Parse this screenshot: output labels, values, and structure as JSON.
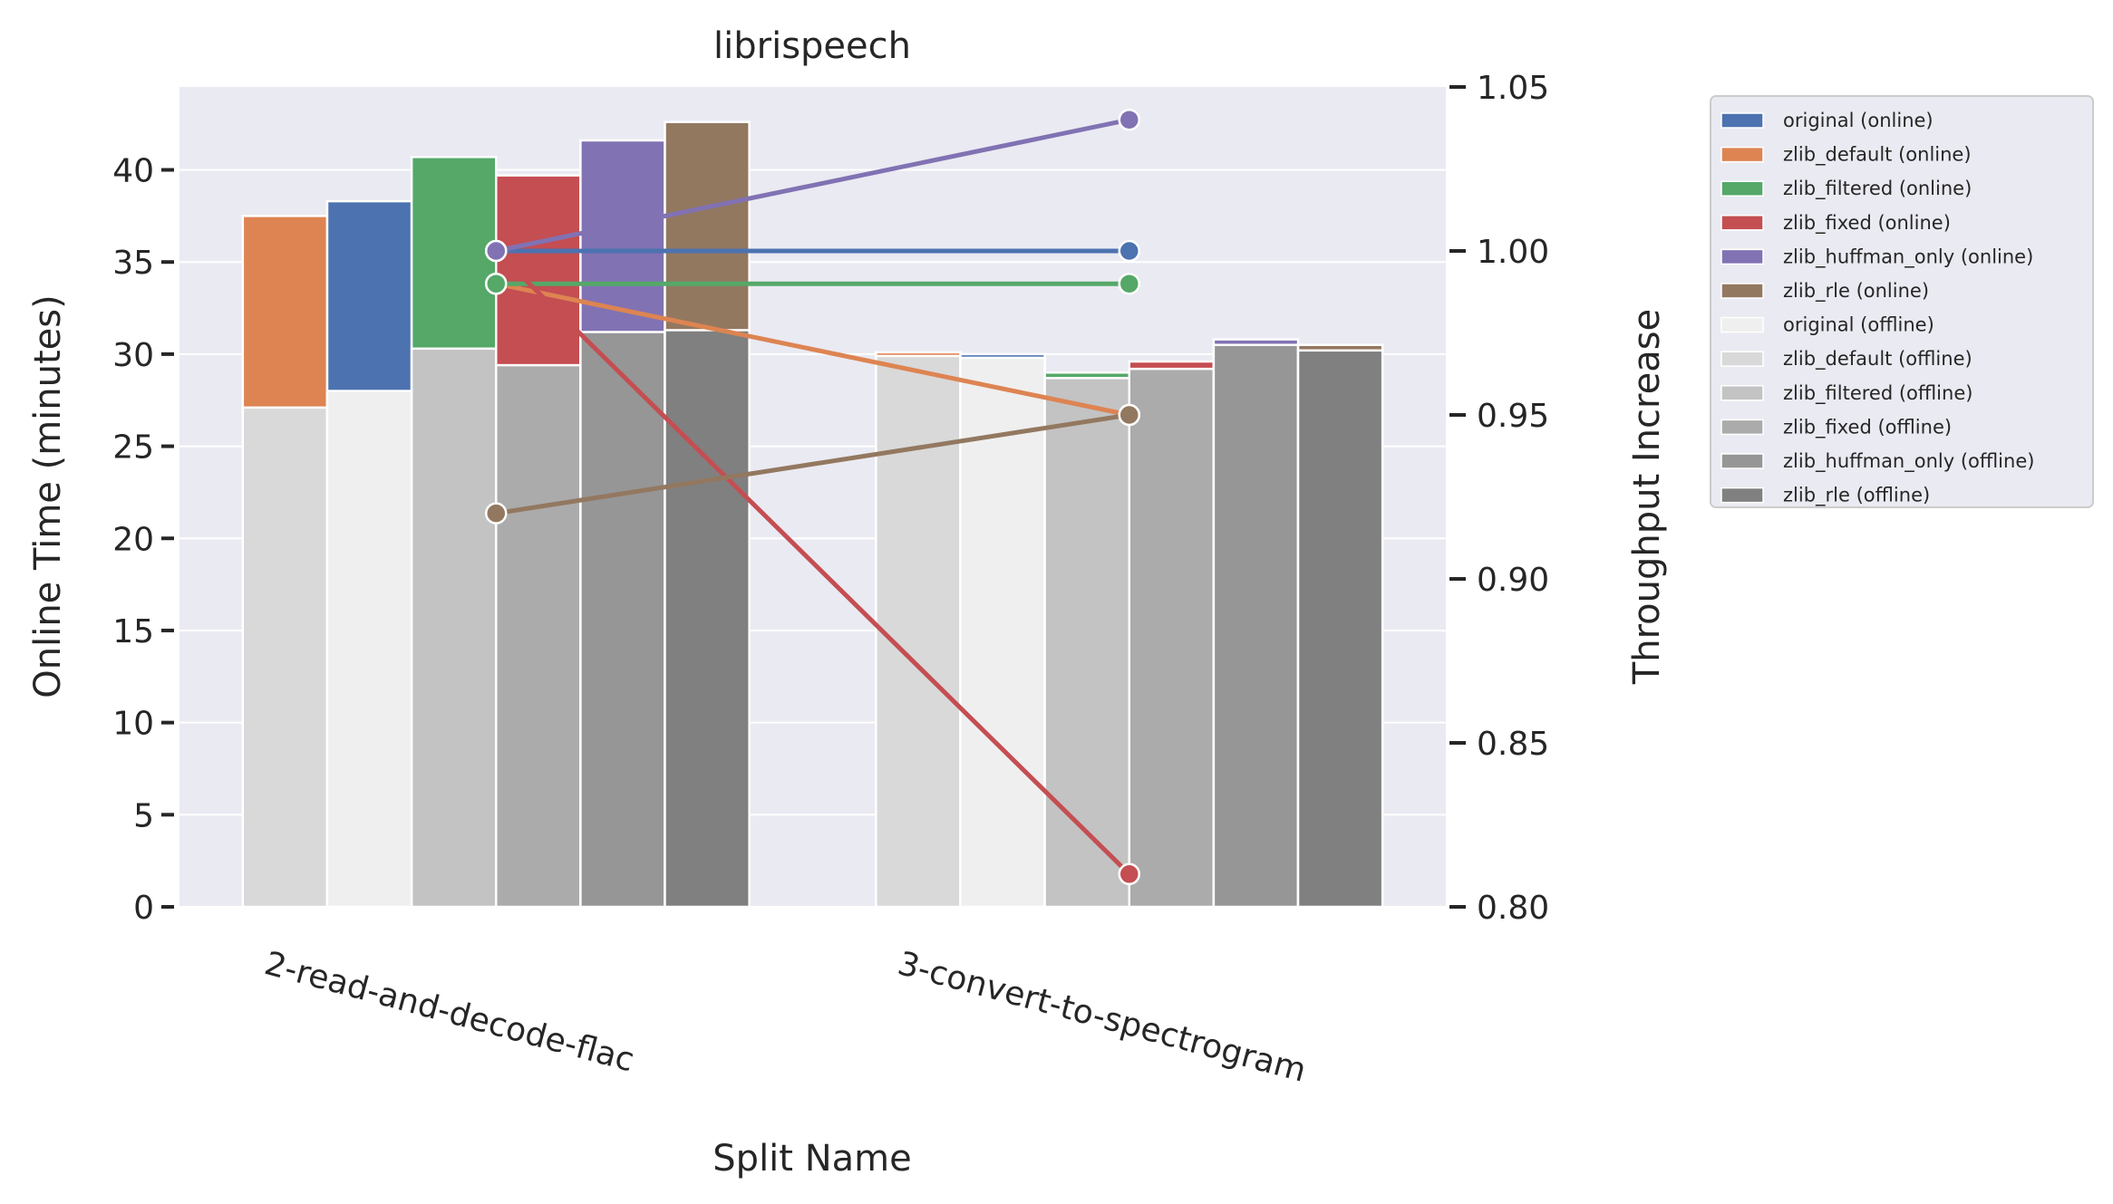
{
  "chart_data": {
    "type": "bar",
    "title": "librispeech",
    "xlabel": "Split Name",
    "ylabel": "Online Time (minutes)",
    "y2label": "Throughput Increase",
    "ylim": [
      0,
      44.5
    ],
    "y2lim": [
      0.8,
      1.05
    ],
    "yticks": [
      "0",
      "5",
      "10",
      "15",
      "20",
      "25",
      "30",
      "35",
      "40"
    ],
    "y2ticks": [
      "0.80",
      "0.85",
      "0.90",
      "0.95",
      "1.00",
      "1.05"
    ],
    "categories": [
      "2-read-and-decode-flac",
      "3-convert-to-spectrogram"
    ],
    "grid": true,
    "legend_position": "outside-right",
    "series": [
      {
        "name": "zlib_default",
        "online": [
          37.5,
          30.1
        ],
        "offline": [
          27.1,
          29.9
        ],
        "online_color": "#dd8452",
        "offline_color": "#d9d9d9"
      },
      {
        "name": "original",
        "online": [
          38.3,
          30.0
        ],
        "offline": [
          28.0,
          29.8
        ],
        "online_color": "#4c72b0",
        "offline_color": "#efefef"
      },
      {
        "name": "zlib_filtered",
        "online": [
          40.7,
          29.0
        ],
        "offline": [
          30.3,
          28.7
        ],
        "online_color": "#55a868",
        "offline_color": "#c3c3c3"
      },
      {
        "name": "zlib_fixed",
        "online": [
          39.7,
          29.6
        ],
        "offline": [
          29.4,
          29.2
        ],
        "online_color": "#c44e52",
        "offline_color": "#ababab"
      },
      {
        "name": "zlib_huffman_only",
        "online": [
          41.6,
          30.8
        ],
        "offline": [
          31.2,
          30.5
        ],
        "online_color": "#8172b3",
        "offline_color": "#969696"
      },
      {
        "name": "zlib_rle",
        "online": [
          42.6,
          30.5
        ],
        "offline": [
          31.3,
          30.2
        ],
        "online_color": "#937860",
        "offline_color": "#808080"
      }
    ],
    "throughput_lines": [
      {
        "series": "original",
        "values": [
          1.0,
          1.0
        ],
        "color": "#4c72b0"
      },
      {
        "series": "zlib_default",
        "values": [
          0.99,
          0.95
        ],
        "color": "#dd8452"
      },
      {
        "series": "zlib_filtered",
        "values": [
          0.99,
          0.99
        ],
        "color": "#55a868"
      },
      {
        "series": "zlib_fixed",
        "values": [
          1.0,
          0.81
        ],
        "color": "#c44e52"
      },
      {
        "series": "zlib_huffman_only",
        "values": [
          1.0,
          1.04
        ],
        "color": "#8172b3"
      },
      {
        "series": "zlib_rle",
        "values": [
          0.92,
          0.95
        ],
        "color": "#937860"
      }
    ],
    "legend": [
      {
        "label": "original (online)",
        "color": "#4c72b0"
      },
      {
        "label": "zlib_default (online)",
        "color": "#dd8452"
      },
      {
        "label": "zlib_filtered (online)",
        "color": "#55a868"
      },
      {
        "label": "zlib_fixed (online)",
        "color": "#c44e52"
      },
      {
        "label": "zlib_huffman_only (online)",
        "color": "#8172b3"
      },
      {
        "label": "zlib_rle (online)",
        "color": "#937860"
      },
      {
        "label": "original (offline)",
        "color": "#efefef"
      },
      {
        "label": "zlib_default (offline)",
        "color": "#d9d9d9"
      },
      {
        "label": "zlib_filtered (offline)",
        "color": "#c3c3c3"
      },
      {
        "label": "zlib_fixed (offline)",
        "color": "#ababab"
      },
      {
        "label": "zlib_huffman_only (offline)",
        "color": "#969696"
      },
      {
        "label": "zlib_rle (offline)",
        "color": "#808080"
      }
    ]
  }
}
